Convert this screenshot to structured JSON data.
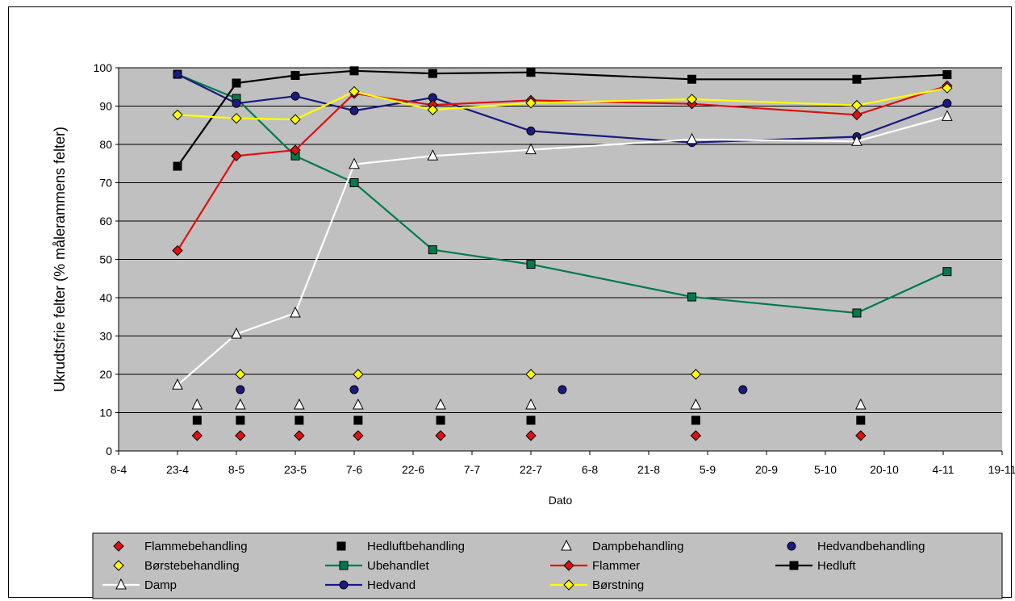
{
  "chart_data": {
    "type": "line",
    "title": "",
    "xlabel": "Dato",
    "ylabel": "Ukrudtsfrie felter (% målerammens felter)",
    "x_type": "date",
    "x_tick_labels": [
      "8-4",
      "23-4",
      "8-5",
      "23-5",
      "7-6",
      "22-6",
      "7-7",
      "22-7",
      "6-8",
      "21-8",
      "5-9",
      "20-9",
      "5-10",
      "20-10",
      "4-11",
      "19-11"
    ],
    "x_tick_dates": [
      "2000-04-08",
      "2000-04-23",
      "2000-05-08",
      "2000-05-23",
      "2000-06-07",
      "2000-06-22",
      "2000-07-07",
      "2000-07-22",
      "2000-08-06",
      "2000-08-21",
      "2000-09-05",
      "2000-09-20",
      "2000-10-05",
      "2000-10-20",
      "2000-11-04",
      "2000-11-19"
    ],
    "xlim": [
      "2000-04-08",
      "2000-11-19"
    ],
    "ylim": [
      0,
      100
    ],
    "y_ticks": [
      0,
      10,
      20,
      30,
      40,
      50,
      60,
      70,
      80,
      90,
      100
    ],
    "grid": true,
    "legend_position": "bottom",
    "colors": {
      "plot_background": "#c0c0c0",
      "green": "#007a4c",
      "red": "#e01010",
      "black": "#000000",
      "white": "#ffffff",
      "blue": "#1a1a80",
      "yellow": "#ffff00"
    },
    "series": [
      {
        "name": "Flammebehandling",
        "kind": "markers",
        "marker": "diamond",
        "color": "#e01010",
        "points": [
          [
            "2000-04-28",
            4
          ],
          [
            "2000-05-09",
            4
          ],
          [
            "2000-05-24",
            4
          ],
          [
            "2000-06-08",
            4
          ],
          [
            "2000-06-29",
            4
          ],
          [
            "2000-07-22",
            4
          ],
          [
            "2000-09-02",
            4
          ],
          [
            "2000-10-14",
            4
          ]
        ]
      },
      {
        "name": "Hedluftbehandling",
        "kind": "markers",
        "marker": "square",
        "color": "#000000",
        "points": [
          [
            "2000-04-28",
            8
          ],
          [
            "2000-05-09",
            8
          ],
          [
            "2000-05-24",
            8
          ],
          [
            "2000-06-08",
            8
          ],
          [
            "2000-06-29",
            8
          ],
          [
            "2000-07-22",
            8
          ],
          [
            "2000-09-02",
            8
          ],
          [
            "2000-10-14",
            8
          ]
        ]
      },
      {
        "name": "Dampbehandling",
        "kind": "markers",
        "marker": "triangle",
        "color": "#ffffff",
        "points": [
          [
            "2000-04-28",
            12
          ],
          [
            "2000-05-09",
            12
          ],
          [
            "2000-05-24",
            12
          ],
          [
            "2000-06-08",
            12
          ],
          [
            "2000-06-29",
            12
          ],
          [
            "2000-07-22",
            12
          ],
          [
            "2000-09-02",
            12
          ],
          [
            "2000-10-14",
            12
          ]
        ]
      },
      {
        "name": "Hedvandbehandling",
        "kind": "markers",
        "marker": "circle",
        "color": "#1a1a80",
        "points": [
          [
            "2000-05-09",
            16
          ],
          [
            "2000-06-07",
            16
          ],
          [
            "2000-07-30",
            16
          ],
          [
            "2000-09-14",
            16
          ]
        ]
      },
      {
        "name": "Børstebehandling",
        "kind": "markers",
        "marker": "diamond",
        "color": "#ffff00",
        "points": [
          [
            "2000-05-09",
            20
          ],
          [
            "2000-06-08",
            20
          ],
          [
            "2000-07-22",
            20
          ],
          [
            "2000-09-02",
            20
          ]
        ]
      },
      {
        "name": "Ubehandlet",
        "kind": "line",
        "marker": "square",
        "color": "#007a4c",
        "points": [
          [
            "2000-04-23",
            98.3
          ],
          [
            "2000-05-08",
            92
          ],
          [
            "2000-05-23",
            77
          ],
          [
            "2000-06-07",
            70
          ],
          [
            "2000-06-27",
            52.5
          ],
          [
            "2000-07-22",
            48.7
          ],
          [
            "2000-09-01",
            40.2
          ],
          [
            "2000-10-13",
            36
          ],
          [
            "2000-11-05",
            46.8
          ]
        ]
      },
      {
        "name": "Flammer",
        "kind": "line",
        "marker": "diamond",
        "color": "#e01010",
        "points": [
          [
            "2000-04-23",
            52.3
          ],
          [
            "2000-05-08",
            77
          ],
          [
            "2000-05-23",
            78.5
          ],
          [
            "2000-06-07",
            93.3
          ],
          [
            "2000-06-27",
            90.3
          ],
          [
            "2000-07-22",
            91.5
          ],
          [
            "2000-09-01",
            90.6
          ],
          [
            "2000-10-13",
            87.7
          ],
          [
            "2000-11-05",
            95.3
          ]
        ]
      },
      {
        "name": "Hedluft",
        "kind": "line",
        "marker": "square",
        "color": "#000000",
        "points": [
          [
            "2000-04-23",
            74.3
          ],
          [
            "2000-05-08",
            96
          ],
          [
            "2000-05-23",
            98
          ],
          [
            "2000-06-07",
            99.2
          ],
          [
            "2000-06-27",
            98.5
          ],
          [
            "2000-07-22",
            98.8
          ],
          [
            "2000-09-01",
            97
          ],
          [
            "2000-10-13",
            97
          ],
          [
            "2000-11-05",
            98.2
          ]
        ]
      },
      {
        "name": "Damp",
        "kind": "line",
        "marker": "triangle",
        "color": "#ffffff",
        "points": [
          [
            "2000-04-23",
            17.2
          ],
          [
            "2000-05-08",
            30.5
          ],
          [
            "2000-05-23",
            36
          ],
          [
            "2000-06-07",
            74.8
          ],
          [
            "2000-06-27",
            77
          ],
          [
            "2000-07-22",
            78.6
          ],
          [
            "2000-09-01",
            81.3
          ],
          [
            "2000-10-13",
            80.8
          ],
          [
            "2000-11-05",
            87.3
          ]
        ]
      },
      {
        "name": "Hedvand",
        "kind": "line",
        "marker": "circle",
        "color": "#1a1a80",
        "points": [
          [
            "2000-04-23",
            98.3
          ],
          [
            "2000-05-08",
            90.7
          ],
          [
            "2000-05-23",
            92.6
          ],
          [
            "2000-06-07",
            88.8
          ],
          [
            "2000-06-27",
            92.2
          ],
          [
            "2000-07-22",
            83.5
          ],
          [
            "2000-09-01",
            80.5
          ],
          [
            "2000-10-13",
            82
          ],
          [
            "2000-11-05",
            90.7
          ]
        ]
      },
      {
        "name": "Børstning",
        "kind": "line",
        "marker": "diamond",
        "color": "#ffff00",
        "points": [
          [
            "2000-04-23",
            87.7
          ],
          [
            "2000-05-08",
            86.8
          ],
          [
            "2000-05-23",
            86.5
          ],
          [
            "2000-06-07",
            93.8
          ],
          [
            "2000-06-27",
            89
          ],
          [
            "2000-07-22",
            90.8
          ],
          [
            "2000-09-01",
            91.8
          ],
          [
            "2000-10-13",
            90.2
          ],
          [
            "2000-11-05",
            94.7
          ]
        ]
      }
    ]
  }
}
